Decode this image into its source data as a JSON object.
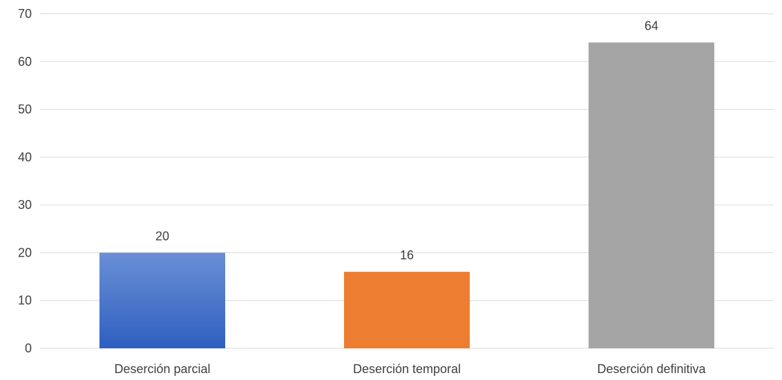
{
  "chart_data": {
    "type": "bar",
    "categories": [
      "Deserción parcial",
      "Deserción temporal",
      "Deserción definitiva"
    ],
    "values": [
      20,
      16,
      64
    ],
    "data_labels": [
      "20",
      "16",
      "64"
    ],
    "title": "",
    "xlabel": "",
    "ylabel": "",
    "ylim": [
      0,
      70
    ],
    "yticks": [
      0,
      10,
      20,
      30,
      40,
      50,
      60,
      70
    ],
    "ytick_labels": [
      "0",
      "10",
      "20",
      "30",
      "40",
      "50",
      "60",
      "70"
    ],
    "grid": true,
    "legend": "none",
    "colors": [
      "#4472c4",
      "#ed7d31",
      "#a5a5a5"
    ],
    "gradient_top": "#6a8fd6",
    "gradient_bottom": "#2e5fbf"
  }
}
